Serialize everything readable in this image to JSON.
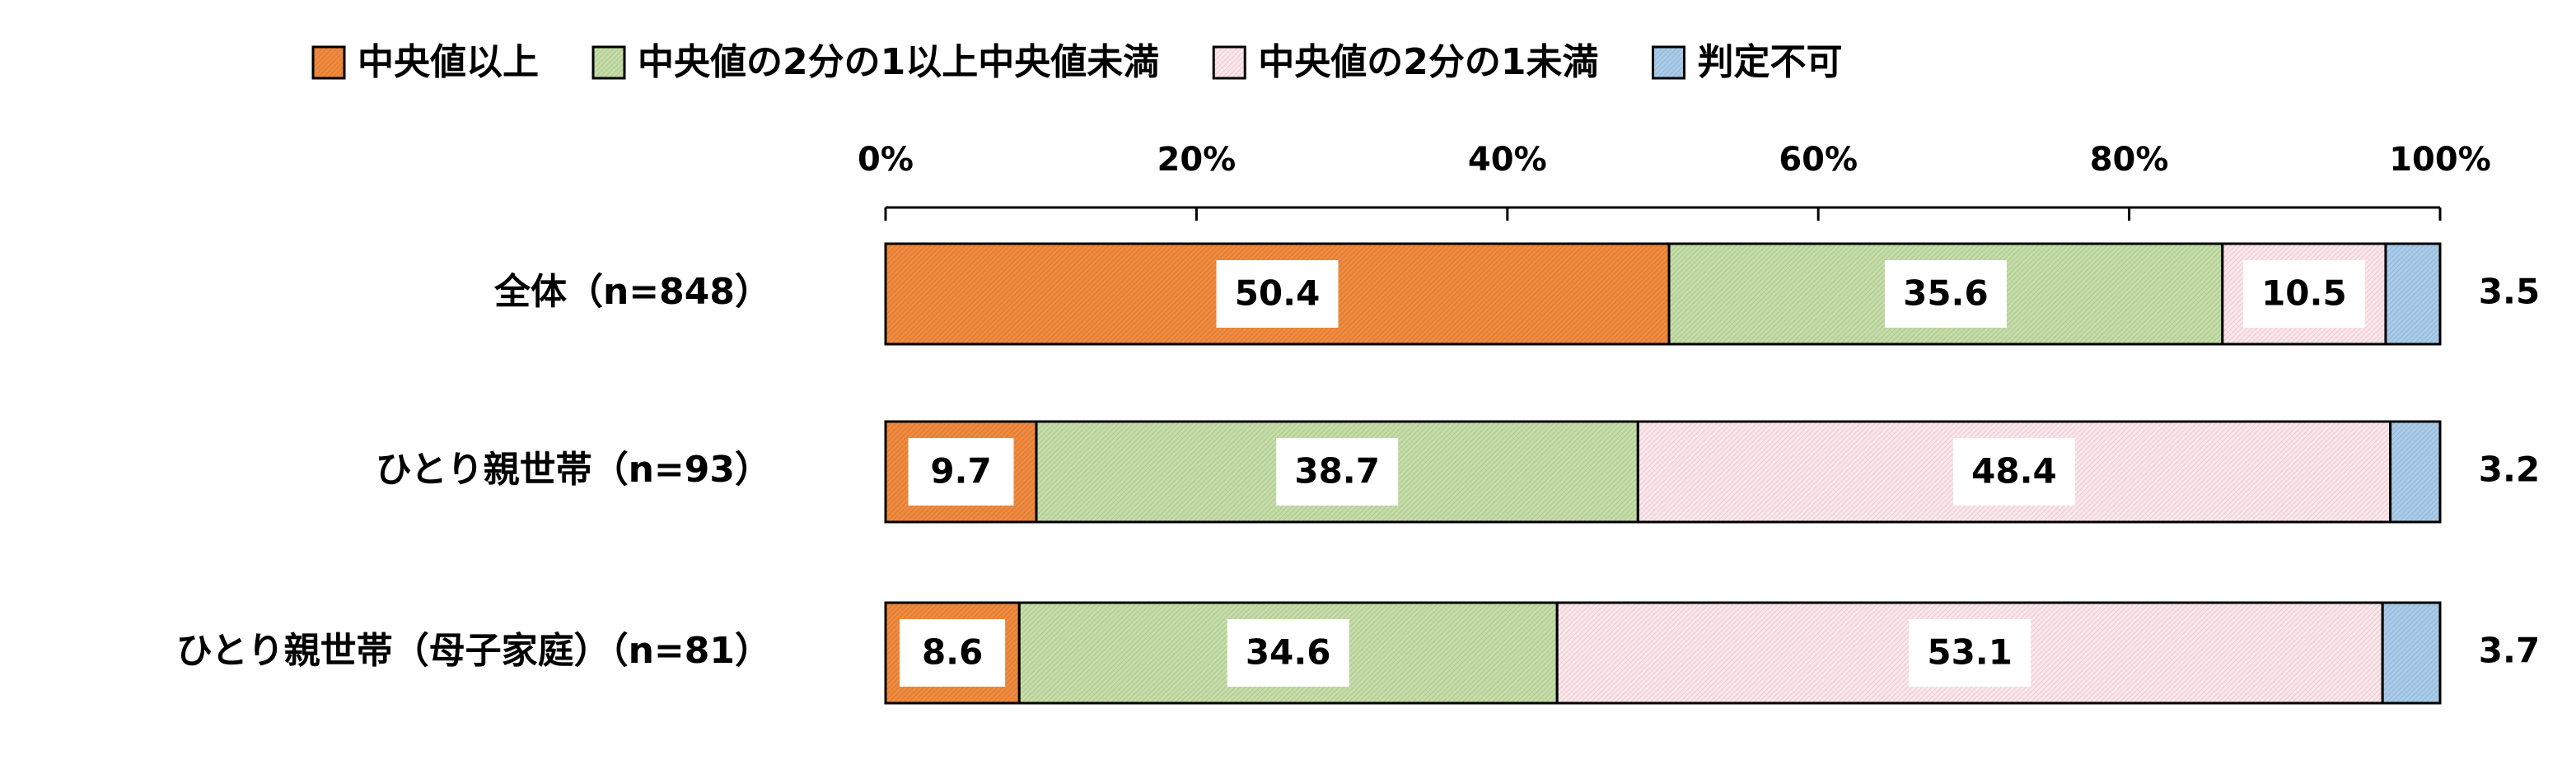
{
  "chart_data": {
    "type": "bar",
    "orientation": "horizontal",
    "stacked": true,
    "percent_scale": true,
    "categories": [
      "全体（n=848）",
      "ひとり親世帯（n=93）",
      "ひとり親世帯（母子家庭）（n=81）"
    ],
    "series": [
      {
        "name": "中央値以上",
        "values": [
          50.4,
          9.7,
          8.6
        ],
        "color": "#F08A3E"
      },
      {
        "name": "中央値の2分の1以上中央値未満",
        "values": [
          35.6,
          38.7,
          34.6
        ],
        "color": "#C4DDA6"
      },
      {
        "name": "中央値の2分の1未満",
        "values": [
          10.5,
          48.4,
          53.1
        ],
        "color": "#FDE6EA"
      },
      {
        "name": "判定不可",
        "values": [
          3.5,
          3.2,
          3.7
        ],
        "color": "#A9CBEA"
      }
    ],
    "data_labels": [
      [
        "50.4",
        "35.6",
        "10.5",
        "3.5"
      ],
      [
        "9.7",
        "38.7",
        "48.4",
        "3.2"
      ],
      [
        "8.6",
        "34.6",
        "53.1",
        "3.7"
      ]
    ],
    "x_ticks": [
      "0%",
      "20%",
      "40%",
      "60%",
      "80%",
      "100%"
    ],
    "xlim": [
      0,
      100
    ],
    "legend_position": "top",
    "grid": false
  }
}
